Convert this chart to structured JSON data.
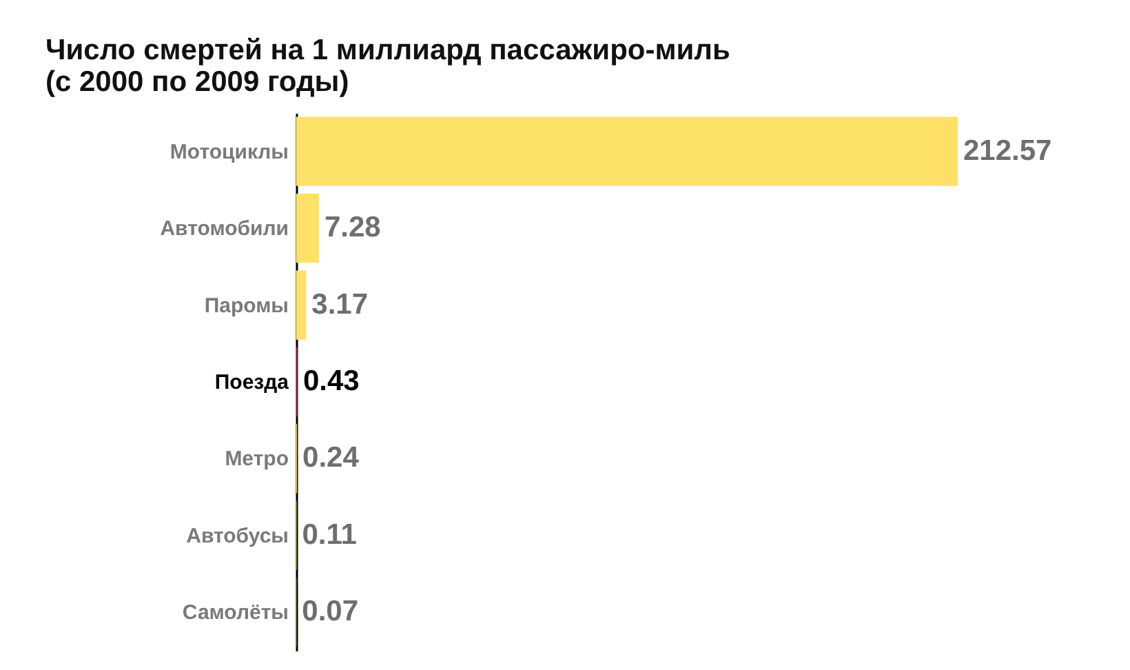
{
  "chart_data": {
    "type": "bar",
    "orientation": "horizontal",
    "title": "Число смертей на 1 миллиард пассажиро-миль\n(с 2000 по 2009 годы)",
    "categories": [
      "Мотоциклы",
      "Автомобили",
      "Паромы",
      "Поезда",
      "Метро",
      "Автобусы",
      "Самолёты"
    ],
    "values": [
      212.57,
      7.28,
      3.17,
      0.43,
      0.24,
      0.11,
      0.07
    ],
    "colors": [
      "#fde068",
      "#fde068",
      "#fde068",
      "#8b1a5a",
      "#fde068",
      "#fde068",
      "#fde068"
    ],
    "data_labels": true
  }
}
